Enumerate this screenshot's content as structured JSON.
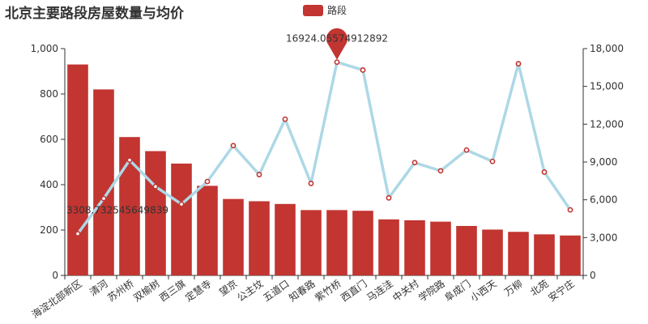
{
  "chart_data": {
    "type": "bar",
    "title": "北京主要路段房屋数量与均价",
    "legend": [
      {
        "name": "路段",
        "color": "#c23531",
        "position": "top-center"
      }
    ],
    "categories": [
      "海淀北部新区",
      "清河",
      "苏州桥",
      "双榆树",
      "西三旗",
      "定慧寺",
      "望京",
      "公主坟",
      "五道口",
      "知春路",
      "紫竹桥",
      "西直门",
      "马连洼",
      "中关村",
      "学院路",
      "阜成门",
      "小西天",
      "万柳",
      "北苑",
      "安宁庄"
    ],
    "series": [
      {
        "name": "路段",
        "type": "bar",
        "axis": "left",
        "color": "#c23531",
        "values": [
          930,
          820,
          610,
          548,
          493,
          395,
          337,
          327,
          315,
          288,
          288,
          285,
          247,
          243,
          237,
          218,
          202,
          192,
          181,
          176
        ]
      },
      {
        "type": "line",
        "axis": "right",
        "color": "#add8e6",
        "values": [
          3308.73,
          6100,
          9150,
          7050,
          5650,
          7450,
          10300,
          8000,
          12400,
          7300,
          16924.06,
          16300,
          6150,
          8950,
          8300,
          9950,
          9050,
          16800,
          8200,
          5200
        ]
      }
    ],
    "y_left": {
      "min": 0,
      "max": 1000,
      "ticks": [
        "0",
        "200",
        "400",
        "600",
        "800",
        "1,000"
      ]
    },
    "y_right": {
      "min": 0,
      "max": 18000,
      "ticks": [
        "0",
        "3,000",
        "6,000",
        "9,000",
        "12,000",
        "15,000",
        "18,000"
      ]
    },
    "annotations": {
      "min_label": "3308.732545649839",
      "max_label": "16924.05574912892",
      "max_marker_color": "#c23531"
    },
    "grid": false
  }
}
